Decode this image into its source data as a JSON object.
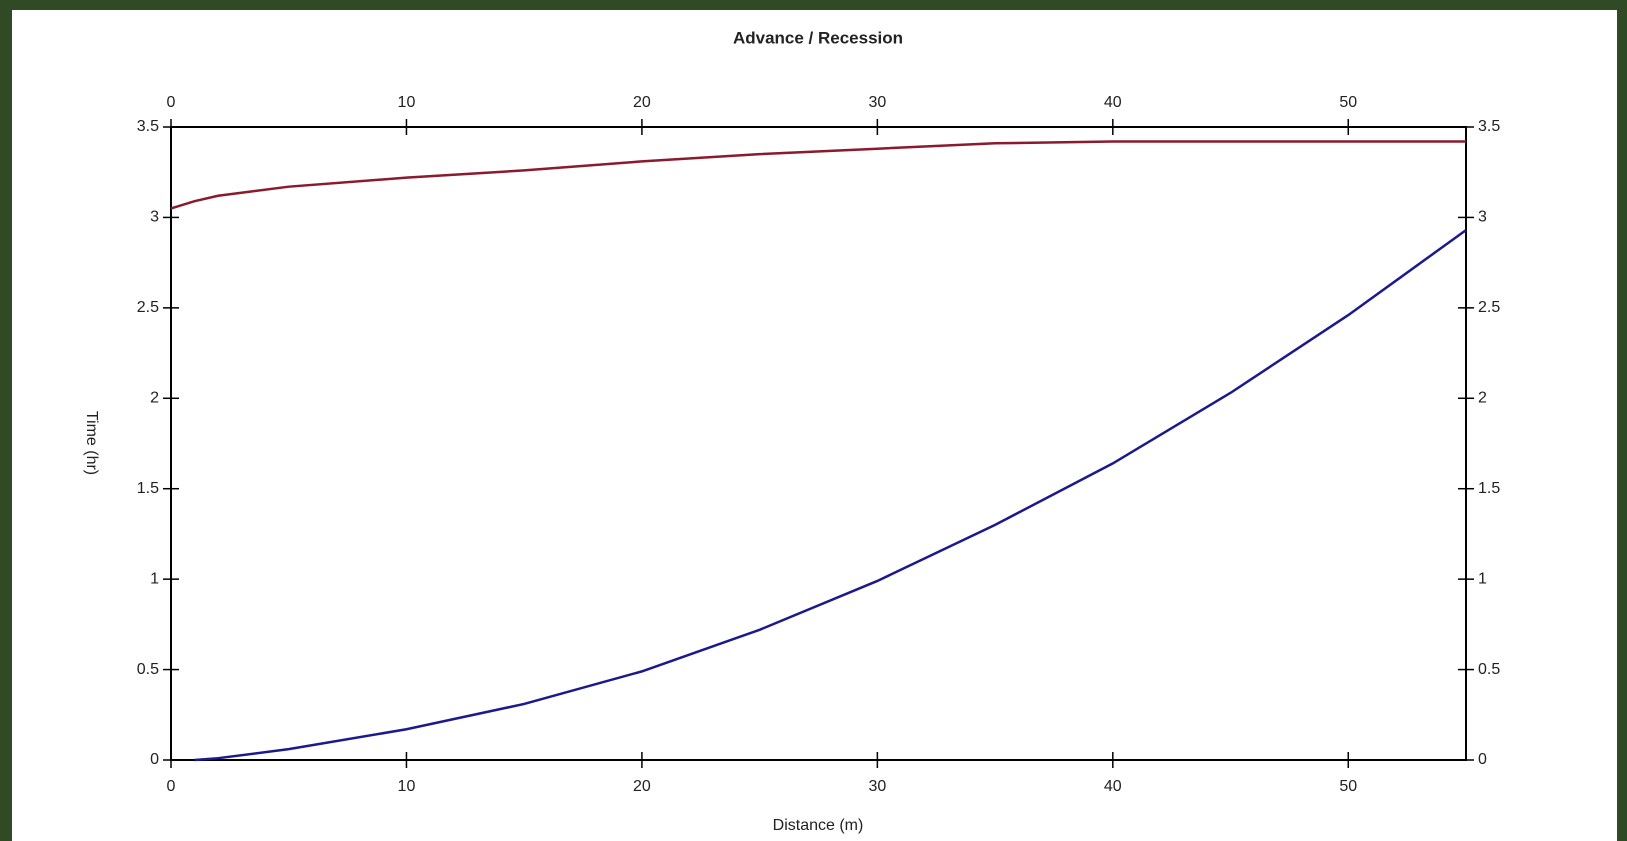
{
  "chart_data": {
    "type": "line",
    "title": "Advance / Recession",
    "x_label": "Distance (m)",
    "y_label": "Time (hr)",
    "x": [
      0,
      1,
      2,
      5,
      10,
      15,
      20,
      25,
      30,
      35,
      40,
      45,
      50,
      55
    ],
    "series": [
      {
        "color": "#8b1a2e",
        "values": [
          3.05,
          3.09,
          3.12,
          3.17,
          3.22,
          3.26,
          3.31,
          3.35,
          3.38,
          3.41,
          3.42,
          3.42,
          3.42,
          3.42
        ]
      },
      {
        "color": "#1a1a8c",
        "values": [
          null,
          0,
          0.01,
          0.06,
          0.17,
          0.31,
          0.49,
          0.72,
          0.99,
          1.3,
          1.64,
          2.03,
          2.46,
          2.93
        ]
      }
    ],
    "xlim": [
      0,
      55
    ],
    "xticks": [
      0,
      10,
      20,
      30,
      40,
      50
    ],
    "ylim": [
      0,
      3.5
    ],
    "yticks": [
      0,
      0.5,
      1,
      1.5,
      2,
      2.5,
      3,
      3.5
    ],
    "grid": false
  }
}
